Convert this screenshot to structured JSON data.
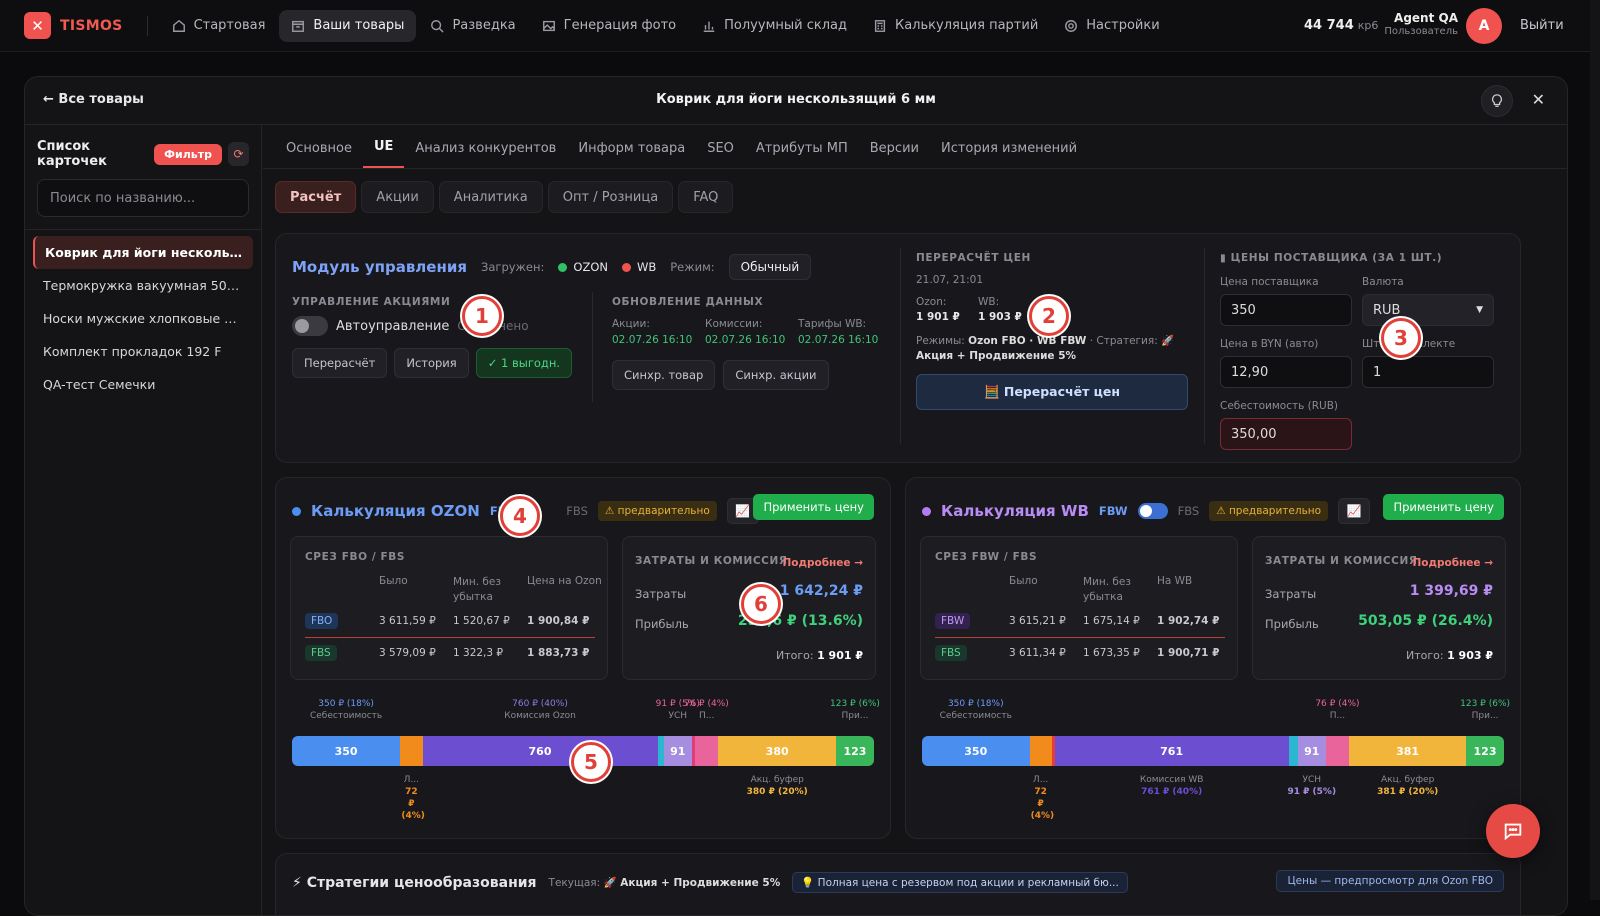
{
  "app": {
    "name": "TISMOS",
    "balance": "44 744",
    "balance_unit": "кр6",
    "user_name": "Agent QA",
    "user_role": "Пользователь",
    "avatar_letter": "A",
    "logout": "Выйти"
  },
  "nav": [
    {
      "label": "Стартовая",
      "icon": "home-icon"
    },
    {
      "label": "Ваши товары",
      "icon": "box-icon"
    },
    {
      "label": "Разведка",
      "icon": "search-icon"
    },
    {
      "label": "Генерация фото",
      "icon": "image-icon"
    },
    {
      "label": "Полуумный склад",
      "icon": "bar-chart-icon"
    },
    {
      "label": "Калькуляция партий",
      "icon": "calculator-icon"
    },
    {
      "label": "Настройки",
      "icon": "gear-icon"
    }
  ],
  "modal": {
    "back": "← Все товары",
    "title": "Коврик для йоги нескользящий 6 мм"
  },
  "sidebar": {
    "title": "Список карточек",
    "filter": "Фильтр",
    "search_placeholder": "Поиск по названию...",
    "items": [
      "Коврик для йоги нескользящ...",
      "Термокружка вакуумная 500 м...",
      "Носки мужские хлопковые наб...",
      "Комплект прокладок 192 F",
      "QA-тест Семечки"
    ]
  },
  "tabs": [
    "Основное",
    "UE",
    "Анализ конкурентов",
    "Информ товара",
    "SEO",
    "Атрибуты МП",
    "Версии",
    "История изменений"
  ],
  "subtabs": [
    "Расчёт",
    "Акции",
    "Аналитика",
    "Опт / Розница",
    "FAQ"
  ],
  "module": {
    "title": "Модуль управления",
    "loaded_label": "Загружен:",
    "mp1": "OZON",
    "mp2": "WB",
    "mode_label": "Режим:",
    "mode": "Обычный",
    "promo_label": "УПРАВЛЕНИЕ АКЦИЯМИ",
    "auto": "Автоуправление",
    "auto_state": "Отключено",
    "btn_recalc": "Перерасчёт",
    "btn_history": "История",
    "btn_benefit": "✓ 1 выгодн.",
    "upd_label": "ОБНОВЛЕНИЕ ДАННЫХ",
    "upd": [
      {
        "k": "Акции:",
        "v": "02.07.26 16:10"
      },
      {
        "k": "Комиссии:",
        "v": "02.07.26 16:10"
      },
      {
        "k": "Тарифы WB:",
        "v": "02.07.26 16:10"
      }
    ],
    "btn_sync1": "Синхр. товар",
    "btn_sync2": "Синхр. акции"
  },
  "recalc": {
    "label": "ПЕРЕРАСЧЁТ ЦЕН",
    "date": "21.07, 21:01",
    "ozon_k": "Ozon:",
    "ozon_v": "1 901 ₽",
    "wb_k": "WB:",
    "wb_v": "1 903 ₽",
    "modes_k": "Режимы:",
    "modes_v": "Ozon FBO · WB FBW",
    "strat_k": "· Стратегия:",
    "strat_v": "🚀 Акция + Продвижение 5%",
    "button": "🧮 Перерасчёт цен"
  },
  "supplier": {
    "label": "ЦЕНЫ ПОСТАВЩИКА (ЗА 1 ШТ.)",
    "price_k": "Цена поставщика",
    "price_v": "350",
    "cur_k": "Валюта",
    "cur_v": "RUB",
    "byn_k": "Цена в BYN (авто)",
    "byn_v": "12,90",
    "kit_k": "Шт. в комплекте",
    "kit_v": "1",
    "cost_k": "Себестоимость (RUB)",
    "cost_v": "350,00"
  },
  "ozon": {
    "title": "Калькуляция OZON",
    "m1": "FBO",
    "m2": "FBS",
    "warn": "⚠ предварительно",
    "apply": "Применить цену",
    "slice": "СРЕЗ FBO / FBS",
    "cols": [
      "Было",
      "Мин. без убытка",
      "Цена на Ozon"
    ],
    "rows": [
      {
        "t": "FBO",
        "a": "3 611,59 ₽",
        "b": "1 520,67 ₽",
        "c": "1 900,84 ₽"
      },
      {
        "t": "FBS",
        "a": "3 579,09 ₽",
        "b": "1 322,3 ₽",
        "c": "1 883,73 ₽"
      }
    ],
    "costs": "ЗАТРАТЫ И КОМИССИЯ",
    "more": "Подробнее →",
    "cost_k": "Затраты",
    "cost_v": "1 642,24 ₽",
    "profit_k": "Прибыль",
    "profit_v": "258,6 ₽ (13.6%)",
    "total_k": "Итого:",
    "total_v": "1 901 ₽",
    "segments": [
      {
        "v": 350,
        "label": "350",
        "c": "#4a8ff0"
      },
      {
        "v": 72,
        "label": "",
        "c": "#f08b1c"
      },
      {
        "v": 760,
        "label": "760",
        "c": "#6c4ed1"
      },
      {
        "v": 20,
        "label": "",
        "c": "#2bb7cf"
      },
      {
        "v": 91,
        "label": "91",
        "c": "#a58ee0"
      },
      {
        "v": 10,
        "label": "",
        "c": "#e23c77"
      },
      {
        "v": 76,
        "label": "",
        "c": "#e8649b"
      },
      {
        "v": 380,
        "label": "380",
        "c": "#f2b53c"
      },
      {
        "v": 123,
        "label": "123",
        "c": "#39b55a"
      }
    ],
    "top": [
      {
        "a": "350 ₽ (18%)",
        "b": "Себестоимость"
      },
      {
        "a": "760 ₽ (40%)",
        "b": "Комиссия Ozon"
      },
      {
        "a": "91 ₽ (5%)",
        "b": "УСН"
      },
      {
        "a": "76 ₽ (4%)",
        "b": "П..."
      },
      {
        "a": "123 ₽ (6%)",
        "b": "При..."
      }
    ],
    "bottom": [
      {
        "a": "Л...",
        "b": "72 ₽ (4%)"
      },
      {
        "a": "Акц. буфер",
        "b": "380 ₽ (20%)"
      }
    ]
  },
  "wb": {
    "title": "Калькуляция WB",
    "m1": "FBW",
    "m2": "FBS",
    "warn": "⚠ предварительно",
    "apply": "Применить цену",
    "slice": "СРЕЗ FBW / FBS",
    "cols": [
      "Было",
      "Мин. без убытка",
      "На WB"
    ],
    "rows": [
      {
        "t": "FBW",
        "a": "3 615,21 ₽",
        "b": "1 675,14 ₽",
        "c": "1 902,74 ₽"
      },
      {
        "t": "FBS",
        "a": "3 611,34 ₽",
        "b": "1 673,35 ₽",
        "c": "1 900,71 ₽"
      }
    ],
    "costs": "ЗАТРАТЫ И КОМИССИЯ",
    "more": "Подробнее →",
    "cost_k": "Затраты",
    "cost_v": "1 399,69 ₽",
    "profit_k": "Прибыль",
    "profit_v": "503,05 ₽ (26.4%)",
    "total_k": "Итого:",
    "total_v": "1 903 ₽",
    "segments": [
      {
        "v": 350,
        "label": "350",
        "c": "#4a8ff0"
      },
      {
        "v": 72,
        "label": "",
        "c": "#f08b1c"
      },
      {
        "v": 10,
        "label": "",
        "c": "#e23c3c"
      },
      {
        "v": 761,
        "label": "761",
        "c": "#6c4ed1"
      },
      {
        "v": 30,
        "label": "",
        "c": "#2bb7cf"
      },
      {
        "v": 91,
        "label": "91",
        "c": "#a58ee0"
      },
      {
        "v": 76,
        "label": "",
        "c": "#e8649b"
      },
      {
        "v": 381,
        "label": "381",
        "c": "#f2b53c"
      },
      {
        "v": 123,
        "label": "123",
        "c": "#39b55a"
      }
    ],
    "top": [
      {
        "a": "350 ₽ (18%)",
        "b": "Себестоимость"
      },
      {
        "a": "76 ₽ (4%)",
        "b": "П..."
      },
      {
        "a": "123 ₽ (6%)",
        "b": "При..."
      }
    ],
    "bottom": [
      {
        "a": "Л...",
        "b": "72 ₽ (4%)"
      },
      {
        "a": "Комиссия WB",
        "b": "761 ₽ (40%)"
      },
      {
        "a": "УСН",
        "b": "91 ₽ (5%)"
      },
      {
        "a": "Акц. буфер",
        "b": "381 ₽ (20%)"
      }
    ]
  },
  "strategies": {
    "title": "⚡ Стратегии ценообразования",
    "current_k": "Текущая:",
    "current_v": "🚀 Акция + Продвижение 5%",
    "hint": "💡 Полная цена с резервом под акции и рекламный бю...",
    "btn": "Цены — предпросмотр для Ozon FBO"
  },
  "markers": [
    "1",
    "2",
    "3",
    "4",
    "5",
    "6"
  ]
}
